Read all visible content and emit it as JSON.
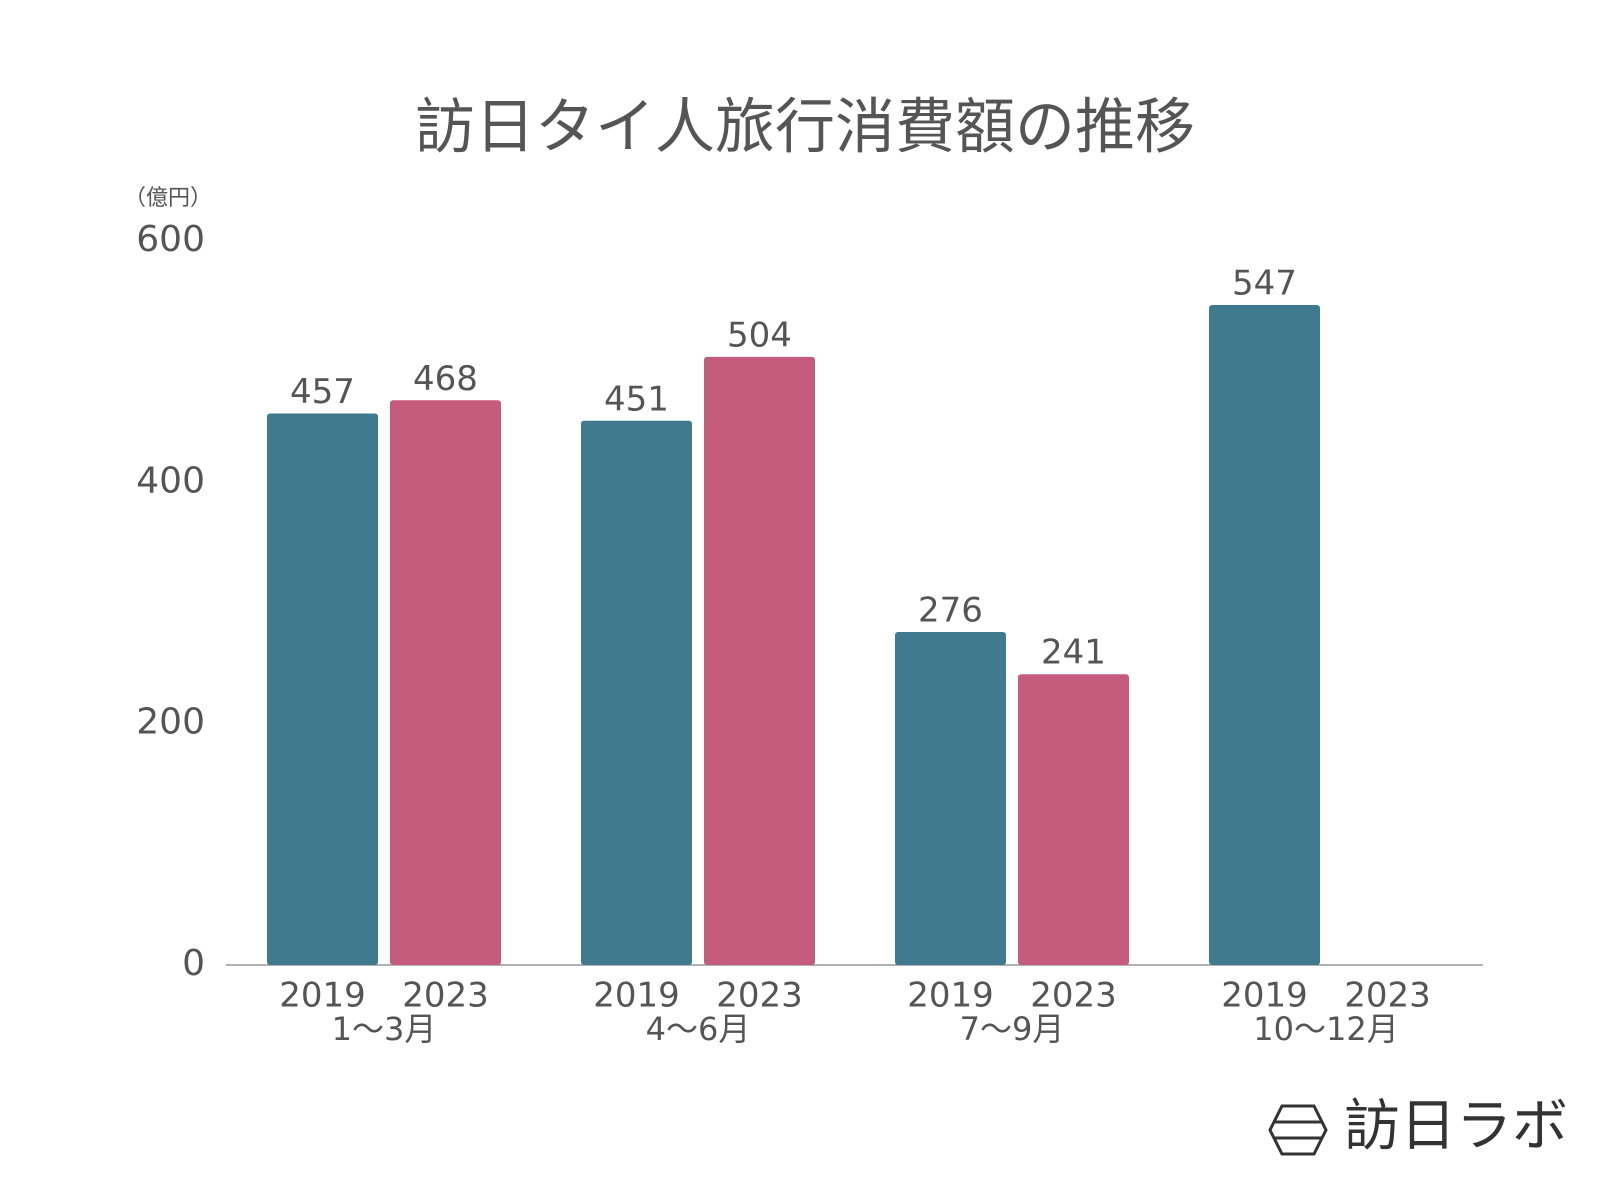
{
  "chart_data": {
    "type": "bar",
    "title": "訪日タイ人旅行消費額の推移",
    "y_label": "（億円）",
    "categories": [
      "1〜3月",
      "4〜6月",
      "7〜9月",
      "10〜12月"
    ],
    "series": [
      {
        "name": "2019",
        "color": "#3f7a8f",
        "values": [
          457,
          451,
          276,
          547
        ]
      },
      {
        "name": "2023",
        "color": "#c55c7e",
        "values": [
          468,
          504,
          241,
          null
        ]
      }
    ],
    "ylim": [
      0,
      600
    ],
    "yticks": [
      0,
      200,
      400,
      600
    ],
    "grid": false
  },
  "logo": "訪日ラボ"
}
